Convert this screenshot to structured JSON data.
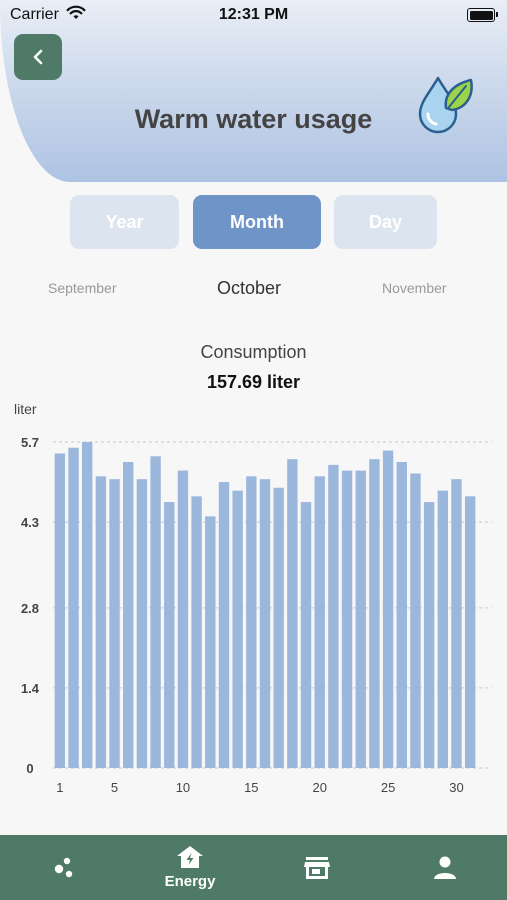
{
  "status_bar": {
    "carrier": "Carrier",
    "time": "12:31 PM"
  },
  "header": {
    "title": "Warm water usage"
  },
  "periods": {
    "year": "Year",
    "month": "Month",
    "day": "Day",
    "selected": "month"
  },
  "months": {
    "previous": "September",
    "current": "October",
    "next": "November"
  },
  "consumption": {
    "label": "Consumption",
    "value": "157.69 liter"
  },
  "chart_data": {
    "type": "bar",
    "ylabel": "liter",
    "ylim": [
      0,
      5.7
    ],
    "yticks": [
      "0",
      "1.4",
      "2.8",
      "4.3",
      "5.7"
    ],
    "ytick_values": [
      0,
      1.4,
      2.8,
      4.3,
      5.7
    ],
    "xticks": [
      "1",
      "5",
      "10",
      "15",
      "20",
      "25",
      "30"
    ],
    "xtick_values": [
      1,
      5,
      10,
      15,
      20,
      25,
      30
    ],
    "x": [
      1,
      2,
      3,
      4,
      5,
      6,
      7,
      8,
      9,
      10,
      11,
      12,
      13,
      14,
      15,
      16,
      17,
      18,
      19,
      20,
      21,
      22,
      23,
      24,
      25,
      26,
      27,
      28,
      29,
      30,
      31
    ],
    "values": [
      5.5,
      5.6,
      5.7,
      5.1,
      5.05,
      5.35,
      5.05,
      5.45,
      4.65,
      5.2,
      4.75,
      4.4,
      5.0,
      4.85,
      5.1,
      5.05,
      4.9,
      5.4,
      4.65,
      5.1,
      5.3,
      5.2,
      5.2,
      5.4,
      5.55,
      5.35,
      5.15,
      4.65,
      4.85,
      5.05,
      4.75
    ],
    "bar_color": "#9cb7dc",
    "grid": true
  },
  "nav": {
    "energy_label": "Energy"
  },
  "colors": {
    "accent": "#4f7a68",
    "selected_tab": "#6f95c8"
  }
}
